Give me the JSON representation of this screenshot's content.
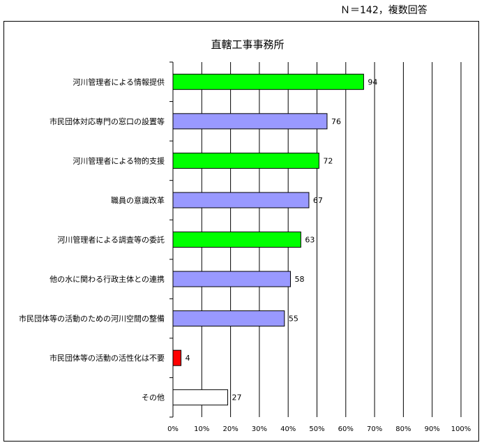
{
  "note": "Ｎ＝142，複数回答",
  "chart_data": {
    "type": "bar",
    "orientation": "horizontal",
    "title": "直轄工事事務所",
    "categories": [
      "河川管理者による情報提供",
      "市民団体対応専門の窓口の設置等",
      "河川管理者による物的支援",
      "職員の意識改革",
      "河川管理者による調査等の委託",
      "他の水に関わる行政主体との連携",
      "市民団体等の活動のための河川空間の整備",
      "市民団体等の活動の活性化は不要",
      "その他"
    ],
    "values": [
      94,
      76,
      72,
      67,
      63,
      58,
      55,
      4,
      27
    ],
    "value_labels": [
      "94",
      "76",
      "72",
      "67",
      "63",
      "58",
      "55",
      "4",
      "27"
    ],
    "percent_of_total": [
      66.2,
      53.5,
      50.7,
      47.2,
      44.4,
      40.8,
      38.7,
      2.8,
      19.0
    ],
    "bar_colors": [
      "#00ff00",
      "#9999ff",
      "#00ff00",
      "#9999ff",
      "#00ff00",
      "#9999ff",
      "#9999ff",
      "#ff0000",
      "#ffffff"
    ],
    "x_ticks": [
      "0%",
      "10%",
      "20%",
      "30%",
      "40%",
      "50%",
      "60%",
      "70%",
      "80%",
      "90%",
      "100%"
    ],
    "xlim": [
      0,
      100
    ],
    "grid": "vertical",
    "legend": "none"
  }
}
